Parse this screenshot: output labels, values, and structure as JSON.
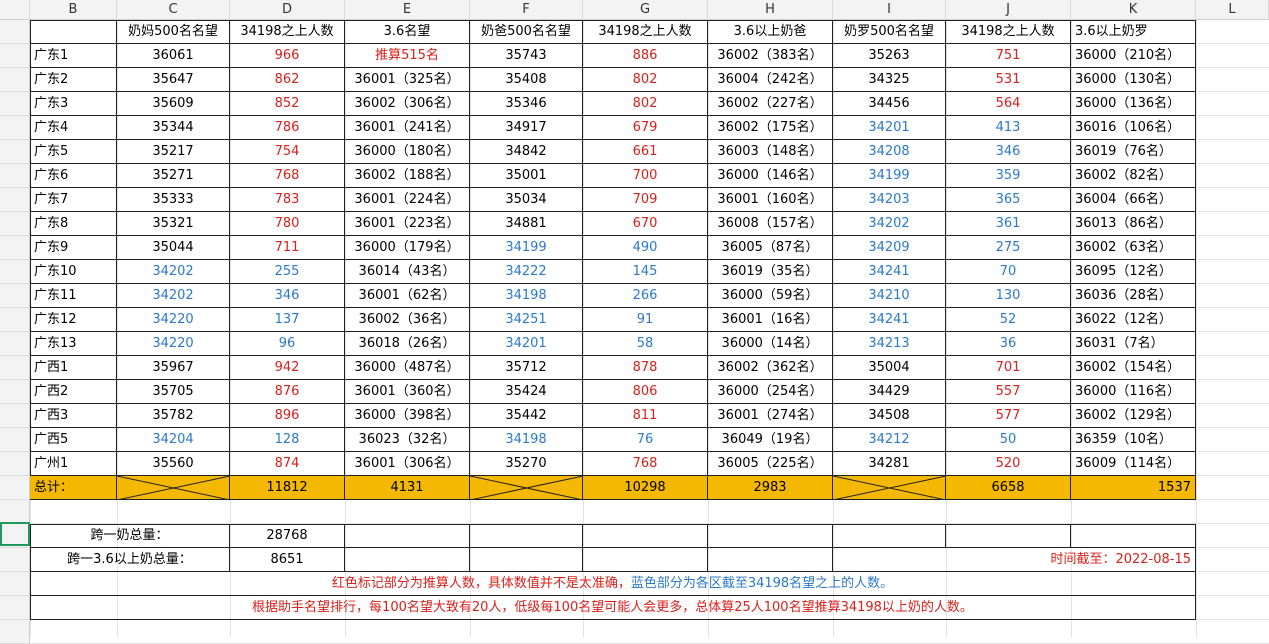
{
  "columns": [
    "B",
    "C",
    "D",
    "E",
    "F",
    "G",
    "H",
    "I",
    "J",
    "K",
    "L"
  ],
  "header": [
    "",
    "奶妈500名名望",
    "34198之上人数",
    "3.6名望",
    "奶爸500名名望",
    "34198之上人数",
    "3.6以上奶爸",
    "奶罗500名名望",
    "34198之上人数",
    "3.6以上奶罗"
  ],
  "rows": [
    {
      "region": "广东1",
      "c": "36061",
      "c_color": "black",
      "d": "966",
      "d_color": "red",
      "e": "推算515名",
      "e_color": "red",
      "f": "35743",
      "f_color": "black",
      "g": "886",
      "g_color": "red",
      "h": "36002（383名）",
      "h_color": "black",
      "i": "35263",
      "i_color": "black",
      "j": "751",
      "j_color": "red",
      "k": "36000（210名）"
    },
    {
      "region": "广东2",
      "c": "35647",
      "c_color": "black",
      "d": "862",
      "d_color": "red",
      "e": "36001（325名）",
      "e_color": "black",
      "f": "35408",
      "f_color": "black",
      "g": "802",
      "g_color": "red",
      "h": "36004（242名）",
      "h_color": "black",
      "i": "34325",
      "i_color": "black",
      "j": "531",
      "j_color": "red",
      "k": "36000（130名）"
    },
    {
      "region": "广东3",
      "c": "35609",
      "c_color": "black",
      "d": "852",
      "d_color": "red",
      "e": "36002（306名）",
      "e_color": "black",
      "f": "35346",
      "f_color": "black",
      "g": "802",
      "g_color": "red",
      "h": "36002（227名）",
      "h_color": "black",
      "i": "34456",
      "i_color": "black",
      "j": "564",
      "j_color": "red",
      "k": "36000（136名）"
    },
    {
      "region": "广东4",
      "c": "35344",
      "c_color": "black",
      "d": "786",
      "d_color": "red",
      "e": "36001（241名）",
      "e_color": "black",
      "f": "34917",
      "f_color": "black",
      "g": "679",
      "g_color": "red",
      "h": "36002（175名）",
      "h_color": "black",
      "i": "34201",
      "i_color": "blue",
      "j": "413",
      "j_color": "blue",
      "k": "36016（106名）"
    },
    {
      "region": "广东5",
      "c": "35217",
      "c_color": "black",
      "d": "754",
      "d_color": "red",
      "e": "36000（180名）",
      "e_color": "black",
      "f": "34842",
      "f_color": "black",
      "g": "661",
      "g_color": "red",
      "h": "36003（148名）",
      "h_color": "black",
      "i": "34208",
      "i_color": "blue",
      "j": "346",
      "j_color": "blue",
      "k": "36019（76名）"
    },
    {
      "region": "广东6",
      "c": "35271",
      "c_color": "black",
      "d": "768",
      "d_color": "red",
      "e": "36002（188名）",
      "e_color": "black",
      "f": "35001",
      "f_color": "black",
      "g": "700",
      "g_color": "red",
      "h": "36000（146名）",
      "h_color": "black",
      "i": "34199",
      "i_color": "blue",
      "j": "359",
      "j_color": "blue",
      "k": "36002（82名）"
    },
    {
      "region": "广东7",
      "c": "35333",
      "c_color": "black",
      "d": "783",
      "d_color": "red",
      "e": "36001（224名）",
      "e_color": "black",
      "f": "35034",
      "f_color": "black",
      "g": "709",
      "g_color": "red",
      "h": "36001（160名）",
      "h_color": "black",
      "i": "34203",
      "i_color": "blue",
      "j": "365",
      "j_color": "blue",
      "k": "36004（66名）"
    },
    {
      "region": "广东8",
      "c": "35321",
      "c_color": "black",
      "d": "780",
      "d_color": "red",
      "e": "36001（223名）",
      "e_color": "black",
      "f": "34881",
      "f_color": "black",
      "g": "670",
      "g_color": "red",
      "h": "36008（157名）",
      "h_color": "black",
      "i": "34202",
      "i_color": "blue",
      "j": "361",
      "j_color": "blue",
      "k": "36013（86名）"
    },
    {
      "region": "广东9",
      "c": "35044",
      "c_color": "black",
      "d": "711",
      "d_color": "red",
      "e": "36000（179名）",
      "e_color": "black",
      "f": "34199",
      "f_color": "blue",
      "g": "490",
      "g_color": "blue",
      "h": "36005（87名）",
      "h_color": "black",
      "i": "34209",
      "i_color": "blue",
      "j": "275",
      "j_color": "blue",
      "k": "36002（63名）"
    },
    {
      "region": "广东10",
      "c": "34202",
      "c_color": "blue",
      "d": "255",
      "d_color": "blue",
      "e": "36014（43名）",
      "e_color": "black",
      "f": "34222",
      "f_color": "blue",
      "g": "145",
      "g_color": "blue",
      "h": "36019（35名）",
      "h_color": "black",
      "i": "34241",
      "i_color": "blue",
      "j": "70",
      "j_color": "blue",
      "k": "36095（12名）"
    },
    {
      "region": "广东11",
      "c": "34202",
      "c_color": "blue",
      "d": "346",
      "d_color": "blue",
      "e": "36001（62名）",
      "e_color": "black",
      "f": "34198",
      "f_color": "blue",
      "g": "266",
      "g_color": "blue",
      "h": "36000（59名）",
      "h_color": "black",
      "i": "34210",
      "i_color": "blue",
      "j": "130",
      "j_color": "blue",
      "k": "36036（28名）"
    },
    {
      "region": "广东12",
      "c": "34220",
      "c_color": "blue",
      "d": "137",
      "d_color": "blue",
      "e": "36002（36名）",
      "e_color": "black",
      "f": "34251",
      "f_color": "blue",
      "g": "91",
      "g_color": "blue",
      "h": "36001（16名）",
      "h_color": "black",
      "i": "34241",
      "i_color": "blue",
      "j": "52",
      "j_color": "blue",
      "k": "36022（12名）"
    },
    {
      "region": "广东13",
      "c": "34220",
      "c_color": "blue",
      "d": "96",
      "d_color": "blue",
      "e": "36018（26名）",
      "e_color": "black",
      "f": "34201",
      "f_color": "blue",
      "g": "58",
      "g_color": "blue",
      "h": "36000（14名）",
      "h_color": "black",
      "i": "34213",
      "i_color": "blue",
      "j": "36",
      "j_color": "blue",
      "k": "36031（7名）"
    },
    {
      "region": "广西1",
      "c": "35967",
      "c_color": "black",
      "d": "942",
      "d_color": "red",
      "e": "36000（487名）",
      "e_color": "black",
      "f": "35712",
      "f_color": "black",
      "g": "878",
      "g_color": "red",
      "h": "36002（362名）",
      "h_color": "black",
      "i": "35004",
      "i_color": "black",
      "j": "701",
      "j_color": "red",
      "k": "36002（154名）"
    },
    {
      "region": "广西2",
      "c": "35705",
      "c_color": "black",
      "d": "876",
      "d_color": "red",
      "e": "36001（360名）",
      "e_color": "black",
      "f": "35424",
      "f_color": "black",
      "g": "806",
      "g_color": "red",
      "h": "36000（254名）",
      "h_color": "black",
      "i": "34429",
      "i_color": "black",
      "j": "557",
      "j_color": "red",
      "k": "36000（116名）"
    },
    {
      "region": "广西3",
      "c": "35782",
      "c_color": "black",
      "d": "896",
      "d_color": "red",
      "e": "36000（398名）",
      "e_color": "black",
      "f": "35442",
      "f_color": "black",
      "g": "811",
      "g_color": "red",
      "h": "36001（274名）",
      "h_color": "black",
      "i": "34508",
      "i_color": "black",
      "j": "577",
      "j_color": "red",
      "k": "36002（129名）"
    },
    {
      "region": "广西5",
      "c": "34204",
      "c_color": "blue",
      "d": "128",
      "d_color": "blue",
      "e": "36023（32名）",
      "e_color": "black",
      "f": "34198",
      "f_color": "blue",
      "g": "76",
      "g_color": "blue",
      "h": "36049（19名）",
      "h_color": "black",
      "i": "34212",
      "i_color": "blue",
      "j": "50",
      "j_color": "blue",
      "k": "36359（10名）"
    },
    {
      "region": "广州1",
      "c": "35560",
      "c_color": "black",
      "d": "874",
      "d_color": "red",
      "e": "36001（306名）",
      "e_color": "black",
      "f": "35270",
      "f_color": "black",
      "g": "768",
      "g_color": "red",
      "h": "36005（225名）",
      "h_color": "black",
      "i": "34281",
      "i_color": "black",
      "j": "520",
      "j_color": "red",
      "k": "36009（114名）"
    }
  ],
  "totals": {
    "label": "总计：",
    "d": "11812",
    "e": "4131",
    "g": "10298",
    "h": "2983",
    "j": "6658",
    "k": "1537"
  },
  "summary": {
    "label1": "跨一奶总量：",
    "value1": "28768",
    "label2": "跨一3.6以上奶总量：",
    "value2": "8651",
    "date": "时间截至：2022-08-15"
  },
  "notes": {
    "note1_red": "红色标记部分为推算人数，具体数值并不是太准确，",
    "note1_blue": "蓝色部分为各区截至34198名望之上的人数。",
    "note2": "根据助手名望排行，每100名望大致有20人，低级每100名望可能人会更多，总体算25人100名望推算34198以上奶的人数。"
  },
  "colors": {
    "red": "#d9201b",
    "blue": "#2b79c8",
    "gold": "#f5b800",
    "selection": "#1e9b5c"
  }
}
